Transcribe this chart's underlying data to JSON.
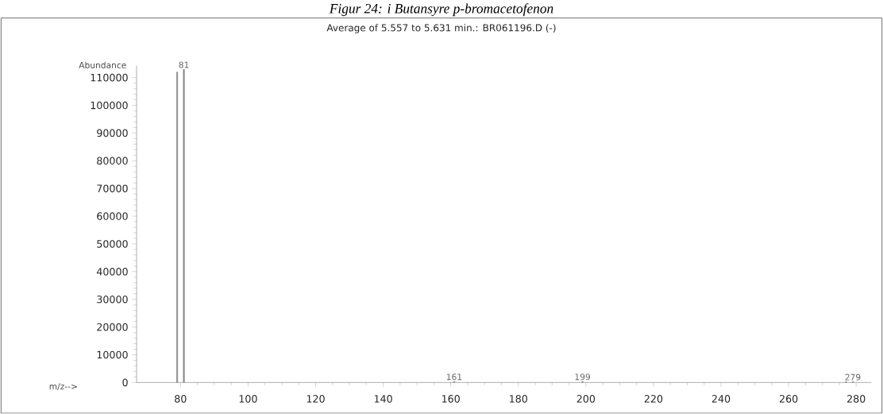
{
  "chart_data": {
    "type": "bar",
    "title": "Figur 24: i Butansyre p-bromacetofenon",
    "subtitle": "Average of 5.557 to 5.631 min.: BR061196.D (-)",
    "xlabel": "m/z-->",
    "ylabel": "Abundance",
    "x": [
      79,
      81,
      161,
      199,
      277,
      279
    ],
    "values": [
      112000,
      113000,
      400,
      400,
      300,
      300
    ],
    "color": "#888888",
    "xlim": [
      67,
      284.5
    ],
    "ylim": [
      0,
      114300
    ],
    "xticks": [
      80,
      100,
      120,
      140,
      160,
      180,
      200,
      220,
      240,
      260,
      280
    ],
    "yticks": [
      0,
      10000,
      20000,
      30000,
      40000,
      50000,
      60000,
      70000,
      80000,
      90000,
      100000,
      110000
    ],
    "annotations": [
      {
        "text": "81",
        "x": 81,
        "y": 113000
      },
      {
        "text": "161",
        "x": 161,
        "y": 400
      },
      {
        "text": "199",
        "x": 199,
        "y": 400
      },
      {
        "text": "279",
        "x": 279,
        "y": 300
      }
    ]
  }
}
